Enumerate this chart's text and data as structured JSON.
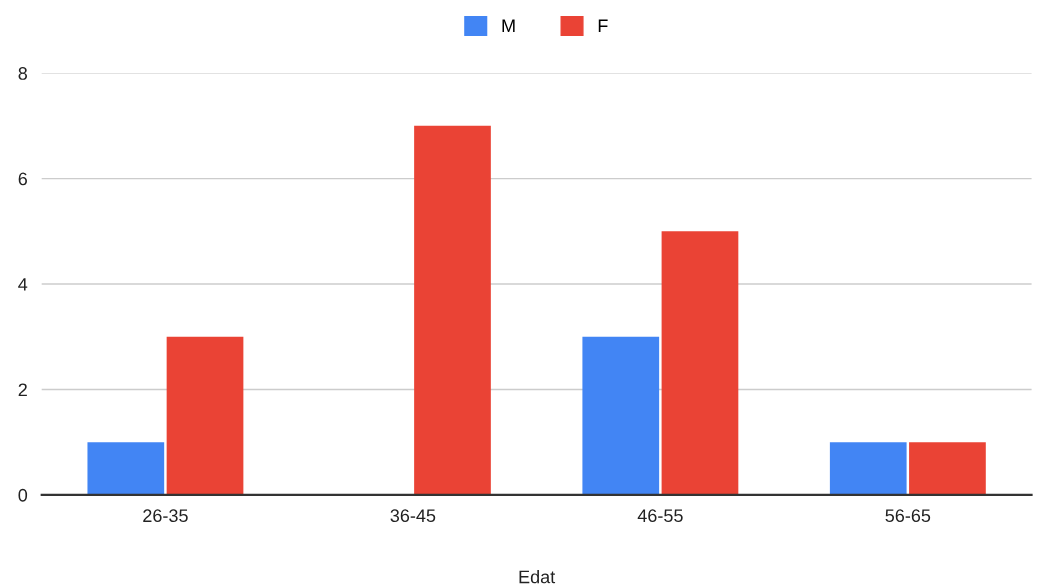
{
  "chart_data": {
    "type": "bar",
    "xlabel": "Edat",
    "categories": [
      "26-35",
      "36-45",
      "46-55",
      "56-65"
    ],
    "series": [
      {
        "name": "M",
        "color": "#4285f4",
        "values": [
          1,
          0,
          3,
          1
        ]
      },
      {
        "name": "F",
        "color": "#ea4335",
        "values": [
          3,
          7,
          5,
          1
        ]
      }
    ],
    "ylim": [
      0,
      8
    ],
    "yticks": [
      0,
      2,
      4,
      6,
      8
    ],
    "grid": "y",
    "legend": "top"
  }
}
